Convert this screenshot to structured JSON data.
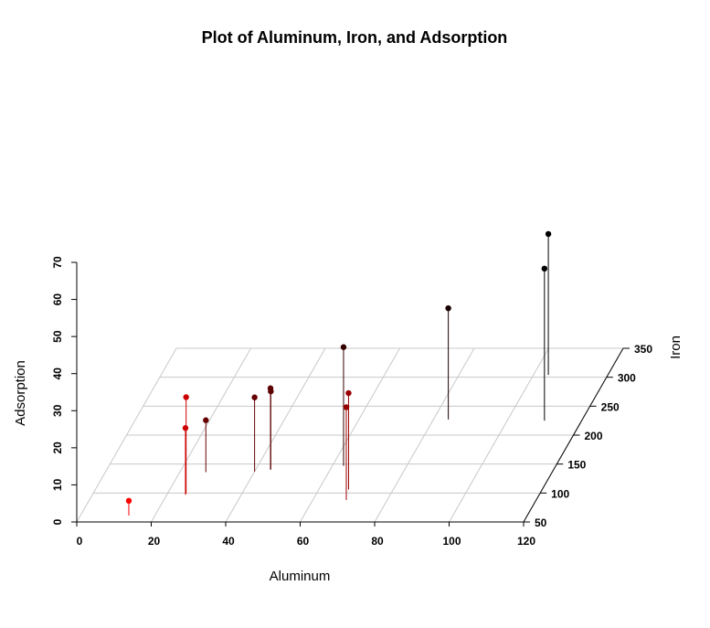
{
  "chart_data": {
    "type": "scatter",
    "title": "Plot of Aluminum, Iron, and Adsorption",
    "xlabel": "Aluminum",
    "ylabel": "Iron",
    "zlabel": "Adsorption",
    "xlim": [
      0,
      120
    ],
    "ylim": [
      50,
      350
    ],
    "zlim": [
      0,
      70
    ],
    "xticks": [
      "0",
      "20",
      "40",
      "60",
      "80",
      "100",
      "120"
    ],
    "yticks": [
      "50",
      "100",
      "150",
      "200",
      "250",
      "300",
      "350"
    ],
    "zticks": [
      "0",
      "10",
      "20",
      "30",
      "40",
      "50",
      "60",
      "70"
    ],
    "grid": true,
    "points": [
      {
        "x": 13,
        "y": 61,
        "z": 4,
        "color": "#ff0000"
      },
      {
        "x": 25,
        "y": 97,
        "z": 18,
        "color": "#cc0000"
      },
      {
        "x": 25,
        "y": 99,
        "z": 26,
        "color": "#cc0000"
      },
      {
        "x": 27,
        "y": 136,
        "z": 14,
        "color": "#660000"
      },
      {
        "x": 40,
        "y": 137,
        "z": 20,
        "color": "#660000"
      },
      {
        "x": 44,
        "y": 140,
        "z": 22,
        "color": "#5c0000"
      },
      {
        "x": 44,
        "y": 141,
        "z": 21,
        "color": "#5c0000"
      },
      {
        "x": 69,
        "y": 88,
        "z": 25,
        "color": "#990000"
      },
      {
        "x": 68,
        "y": 106,
        "z": 26,
        "color": "#990000"
      },
      {
        "x": 63,
        "y": 147,
        "z": 32,
        "color": "#330000"
      },
      {
        "x": 84,
        "y": 227,
        "z": 30,
        "color": "#1a0000"
      },
      {
        "x": 104,
        "y": 304,
        "z": 38,
        "color": "#000000"
      },
      {
        "x": 110,
        "y": 225,
        "z": 41,
        "color": "#000000"
      }
    ]
  }
}
